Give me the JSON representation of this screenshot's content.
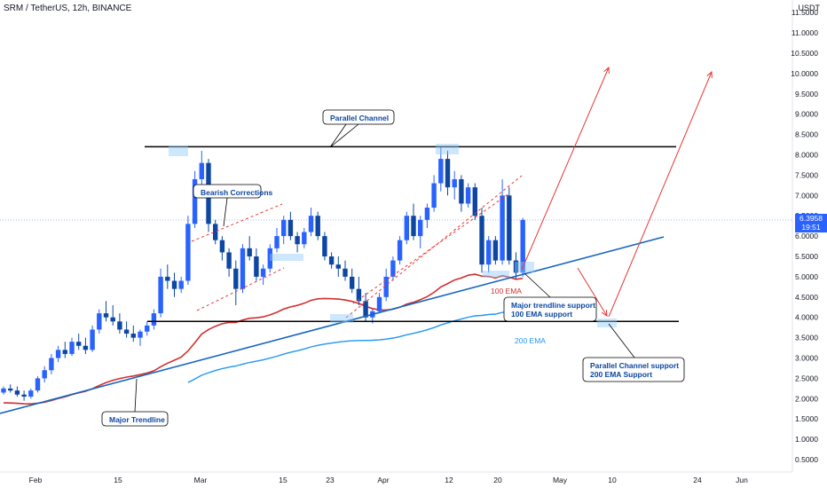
{
  "header": {
    "title": "SRM / TetherUS, 12h, BINANCE",
    "currency": "USDT"
  },
  "price_tag": {
    "price": "6.3958",
    "countdown": "19:51"
  },
  "colors": {
    "up": "#2962ff",
    "down": "#0d47a1",
    "ema100": "#d32f2f",
    "ema200": "#2196f3",
    "trend": "#1565c0",
    "projection": "#e53935",
    "label_text": "#0d47a1"
  },
  "annotations": {
    "parallel_channel": "Parallel Channel",
    "bearish_corrections": "Bearish Corrections",
    "major_trendline": "Major Trendline",
    "ema100": "100 EMA",
    "ema200": "200 EMA",
    "support1_line1": "Major trendline support",
    "support1_line2": "100 EMA support",
    "support2_line1": "Parallel Channel support",
    "support2_line2": "200 EMA Support"
  },
  "chart_data": {
    "type": "candlestick",
    "title": "SRM / TetherUS, 12h, BINANCE",
    "y_ticks": [
      0.5,
      1.0,
      1.5,
      2.0,
      2.5,
      3.0,
      3.5,
      4.0,
      4.5,
      5.0,
      5.5,
      6.0,
      6.5,
      7.0,
      7.5,
      8.0,
      8.5,
      9.0,
      9.5,
      10.0,
      10.5,
      11.0,
      11.5
    ],
    "ylim": [
      0.5,
      11.7
    ],
    "x_ticks": [
      "Feb",
      "15",
      "Mar",
      "15",
      "23",
      "Apr",
      "12",
      "20",
      "May",
      "10",
      "24",
      "Jun"
    ],
    "channel": {
      "top": 8.2,
      "bottom": 3.9
    },
    "candles": [
      [
        2.15,
        2.3,
        2.1,
        2.25
      ],
      [
        2.25,
        2.35,
        2.15,
        2.2
      ],
      [
        2.2,
        2.3,
        2.05,
        2.1
      ],
      [
        2.1,
        2.2,
        1.95,
        2.05
      ],
      [
        2.05,
        2.25,
        2.0,
        2.2
      ],
      [
        2.2,
        2.55,
        2.15,
        2.5
      ],
      [
        2.5,
        2.8,
        2.4,
        2.7
      ],
      [
        2.7,
        3.1,
        2.6,
        3.0
      ],
      [
        3.0,
        3.3,
        2.9,
        3.2
      ],
      [
        3.2,
        3.4,
        3.0,
        3.1
      ],
      [
        3.1,
        3.5,
        3.05,
        3.4
      ],
      [
        3.4,
        3.6,
        3.2,
        3.3
      ],
      [
        3.3,
        3.5,
        3.1,
        3.2
      ],
      [
        3.2,
        3.8,
        3.15,
        3.7
      ],
      [
        3.7,
        4.2,
        3.6,
        4.1
      ],
      [
        4.1,
        4.4,
        3.9,
        4.0
      ],
      [
        4.0,
        4.3,
        3.8,
        3.9
      ],
      [
        3.9,
        4.1,
        3.6,
        3.7
      ],
      [
        3.7,
        3.9,
        3.5,
        3.6
      ],
      [
        3.6,
        3.8,
        3.4,
        3.5
      ],
      [
        3.5,
        3.7,
        3.3,
        3.65
      ],
      [
        3.65,
        3.9,
        3.55,
        3.8
      ],
      [
        3.8,
        4.2,
        3.7,
        4.1
      ],
      [
        4.1,
        5.2,
        4.0,
        5.0
      ],
      [
        5.0,
        5.3,
        4.7,
        4.9
      ],
      [
        4.9,
        5.1,
        4.5,
        4.7
      ],
      [
        4.7,
        5.0,
        4.6,
        4.9
      ],
      [
        4.9,
        6.5,
        4.8,
        6.3
      ],
      [
        6.3,
        7.6,
        6.2,
        7.4
      ],
      [
        7.4,
        8.1,
        7.0,
        7.8
      ],
      [
        7.8,
        7.9,
        6.1,
        6.3
      ],
      [
        6.3,
        6.4,
        5.8,
        5.9
      ],
      [
        5.9,
        6.0,
        5.4,
        5.6
      ],
      [
        5.6,
        5.7,
        5.0,
        5.2
      ],
      [
        5.2,
        5.4,
        4.3,
        4.7
      ],
      [
        4.7,
        5.8,
        4.6,
        5.7
      ],
      [
        5.7,
        6.0,
        5.4,
        5.5
      ],
      [
        5.5,
        5.7,
        4.9,
        5.0
      ],
      [
        5.0,
        5.3,
        4.8,
        5.2
      ],
      [
        5.2,
        5.8,
        5.1,
        5.7
      ],
      [
        5.7,
        6.2,
        5.6,
        6.0
      ],
      [
        6.0,
        6.5,
        5.8,
        6.4
      ],
      [
        6.4,
        6.6,
        5.9,
        6.0
      ],
      [
        6.0,
        6.1,
        5.6,
        5.8
      ],
      [
        5.8,
        6.2,
        5.7,
        6.1
      ],
      [
        6.1,
        6.7,
        6.0,
        6.5
      ],
      [
        6.5,
        6.6,
        5.9,
        6.0
      ],
      [
        6.0,
        6.1,
        5.4,
        5.5
      ],
      [
        5.5,
        5.6,
        5.2,
        5.3
      ],
      [
        5.3,
        5.5,
        5.0,
        5.2
      ],
      [
        5.2,
        5.4,
        4.9,
        5.0
      ],
      [
        5.0,
        5.2,
        4.6,
        4.7
      ],
      [
        4.7,
        5.0,
        4.3,
        4.4
      ],
      [
        4.4,
        4.6,
        3.9,
        4.0
      ],
      [
        4.0,
        4.2,
        3.85,
        4.15
      ],
      [
        4.15,
        4.6,
        4.1,
        4.5
      ],
      [
        4.5,
        5.2,
        4.4,
        5.0
      ],
      [
        5.0,
        5.5,
        4.9,
        5.4
      ],
      [
        5.4,
        6.0,
        5.3,
        5.9
      ],
      [
        5.9,
        6.6,
        5.8,
        6.5
      ],
      [
        6.5,
        6.8,
        5.9,
        6.0
      ],
      [
        6.0,
        6.5,
        5.7,
        6.4
      ],
      [
        6.4,
        6.8,
        6.2,
        6.7
      ],
      [
        6.7,
        7.5,
        6.6,
        7.3
      ],
      [
        7.3,
        8.2,
        7.1,
        7.9
      ],
      [
        7.9,
        8.1,
        7.0,
        7.2
      ],
      [
        7.2,
        7.6,
        6.9,
        7.4
      ],
      [
        7.4,
        7.5,
        6.6,
        6.8
      ],
      [
        6.8,
        7.3,
        6.7,
        7.2
      ],
      [
        7.2,
        7.3,
        6.4,
        6.5
      ],
      [
        6.5,
        6.7,
        5.1,
        5.3
      ],
      [
        5.3,
        6.0,
        5.1,
        5.9
      ],
      [
        5.9,
        6.0,
        5.3,
        5.4
      ],
      [
        5.4,
        7.4,
        5.3,
        7.0
      ],
      [
        7.0,
        7.2,
        5.3,
        5.4
      ],
      [
        5.4,
        5.6,
        4.95,
        5.1
      ],
      [
        5.1,
        6.45,
        5.0,
        6.4
      ]
    ]
  }
}
